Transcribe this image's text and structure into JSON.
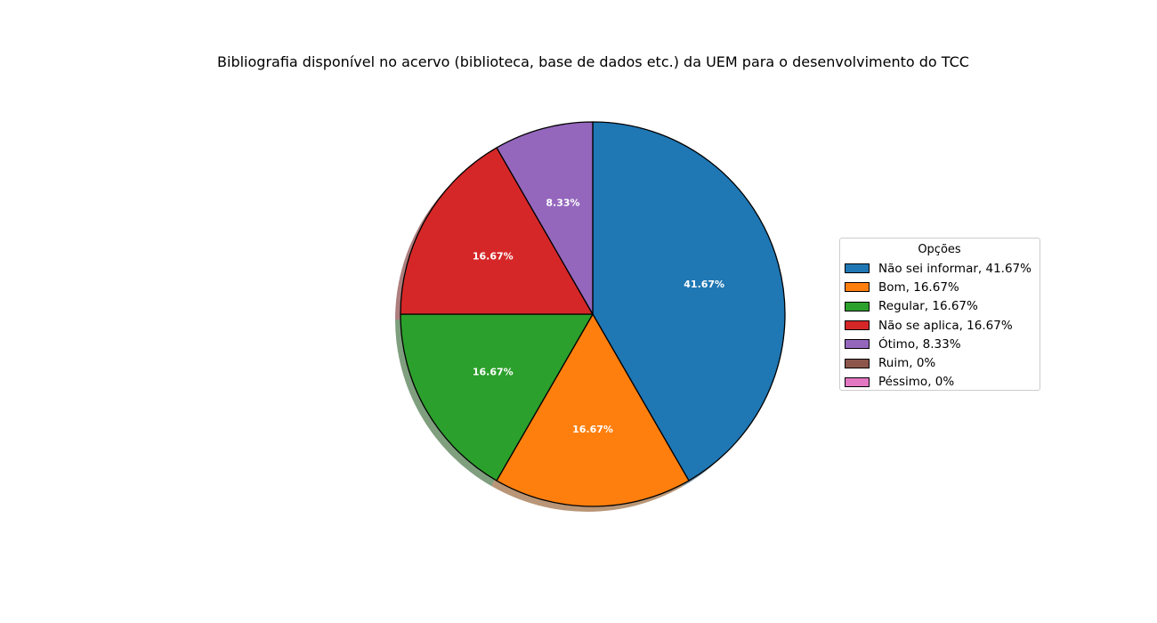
{
  "chart_data": {
    "type": "pie",
    "title": "Bibliografia disponível no acervo (biblioteca, base de dados etc.) da UEM para o desenvolvimento do TCC",
    "legend_title": "Opções",
    "legend_position": "right",
    "shadow": true,
    "slices": [
      {
        "label": "Não sei informar",
        "value": 41.67,
        "legend_text": "Não sei informar, 41.67%",
        "pct_label": "41.67%",
        "color": "#1f77b4"
      },
      {
        "label": "Bom",
        "value": 16.67,
        "legend_text": "Bom, 16.67%",
        "pct_label": "16.67%",
        "color": "#ff7f0e"
      },
      {
        "label": "Regular",
        "value": 16.67,
        "legend_text": "Regular, 16.67%",
        "pct_label": "16.67%",
        "color": "#2ca02c"
      },
      {
        "label": "Não se aplica",
        "value": 16.67,
        "legend_text": "Não se aplica, 16.67%",
        "pct_label": "16.67%",
        "color": "#d62728"
      },
      {
        "label": "Ótimo",
        "value": 8.33,
        "legend_text": "Ótimo, 8.33%",
        "pct_label": "8.33%",
        "color": "#9467bd"
      },
      {
        "label": "Ruim",
        "value": 0,
        "legend_text": "Ruim, 0%",
        "pct_label": "",
        "color": "#8c564b"
      },
      {
        "label": "Péssimo",
        "value": 0,
        "legend_text": "Péssimo, 0%",
        "pct_label": "",
        "color": "#e377c2"
      }
    ]
  }
}
